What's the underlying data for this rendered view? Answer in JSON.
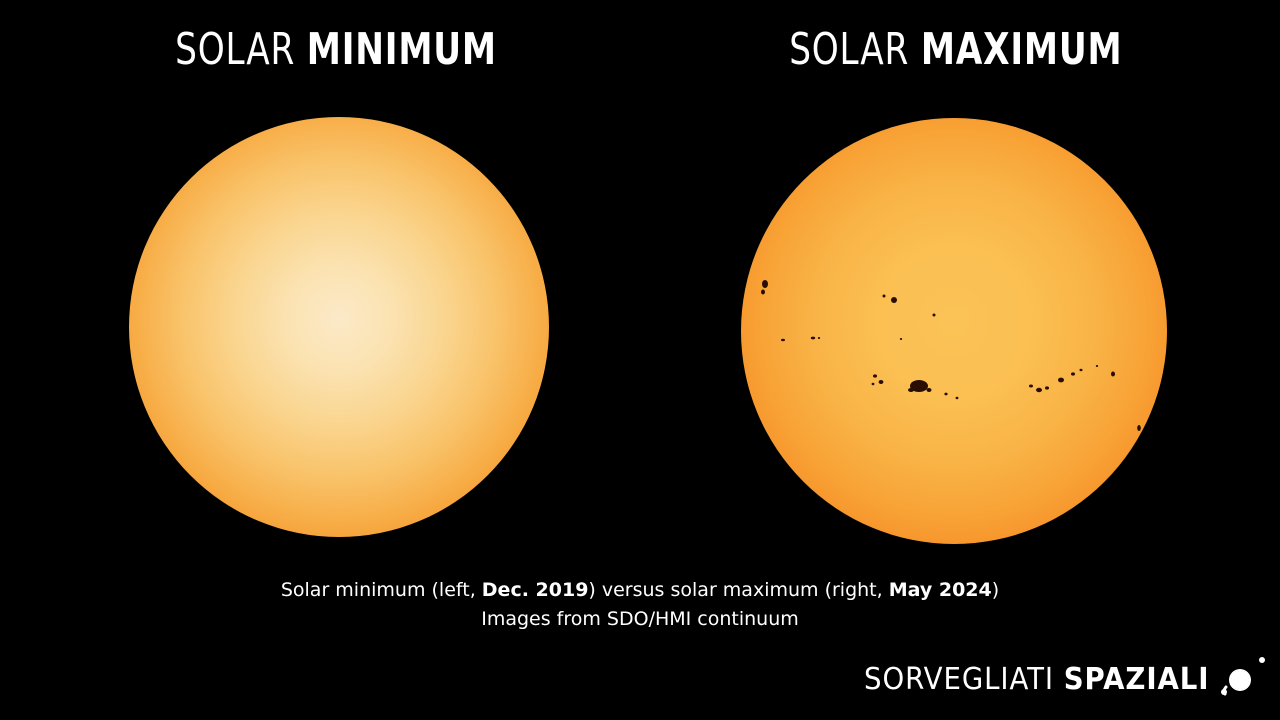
{
  "titles": {
    "left": {
      "light": "SOLAR ",
      "bold": "MINIMUM"
    },
    "right": {
      "light": "SOLAR ",
      "bold": "MAXIMUM"
    }
  },
  "images": {
    "left": {
      "label": "solar disk at minimum",
      "colors": [
        "#fbe9c8",
        "#f59327",
        "#e06a08"
      ]
    },
    "right": {
      "label": "solar disk at maximum with sunspots",
      "colors": [
        "#fbc257",
        "#f6922a",
        "#de5f06"
      ]
    }
  },
  "caption": {
    "line1_pre": "Solar minimum (left, ",
    "line1_bold1": "Dec. 2019",
    "line1_mid": ") versus solar maximum (right, ",
    "line1_bold2": "May 2024",
    "line1_post": ")",
    "line2": "Images from SDO/HMI continuum"
  },
  "logo": {
    "light": "SORVEGLIATI ",
    "bold": "SPAZIALI"
  }
}
